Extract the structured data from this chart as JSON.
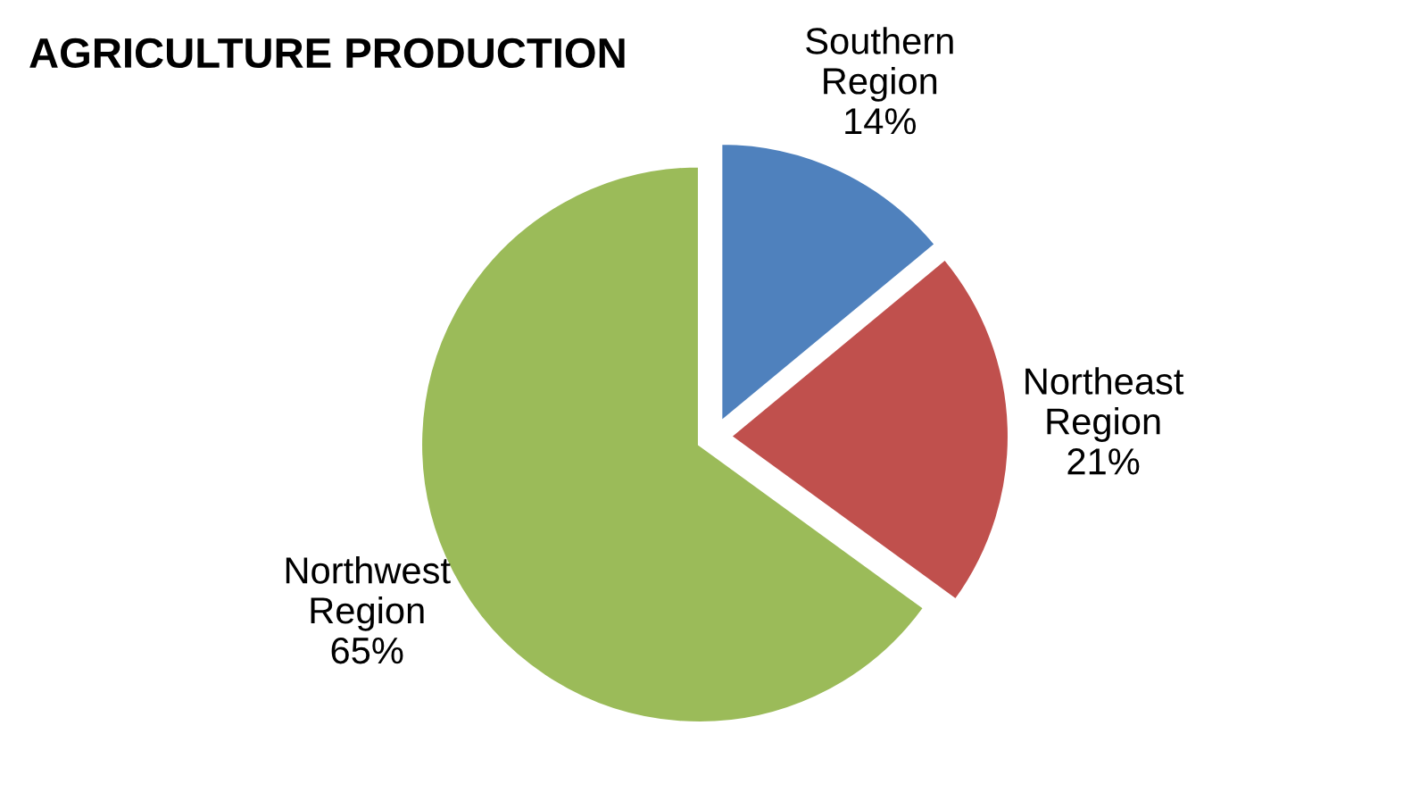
{
  "chart_data": {
    "type": "pie",
    "title": "AGRICULTURE PRODUCTION",
    "categories": [
      "Southern Region",
      "Northeast Region",
      "Northwest Region"
    ],
    "values": [
      14,
      21,
      65
    ],
    "value_labels": [
      "14%",
      "21%",
      "65%"
    ],
    "colors": [
      "#4f81bd",
      "#c0504d",
      "#9bbb59"
    ],
    "legend": false
  }
}
